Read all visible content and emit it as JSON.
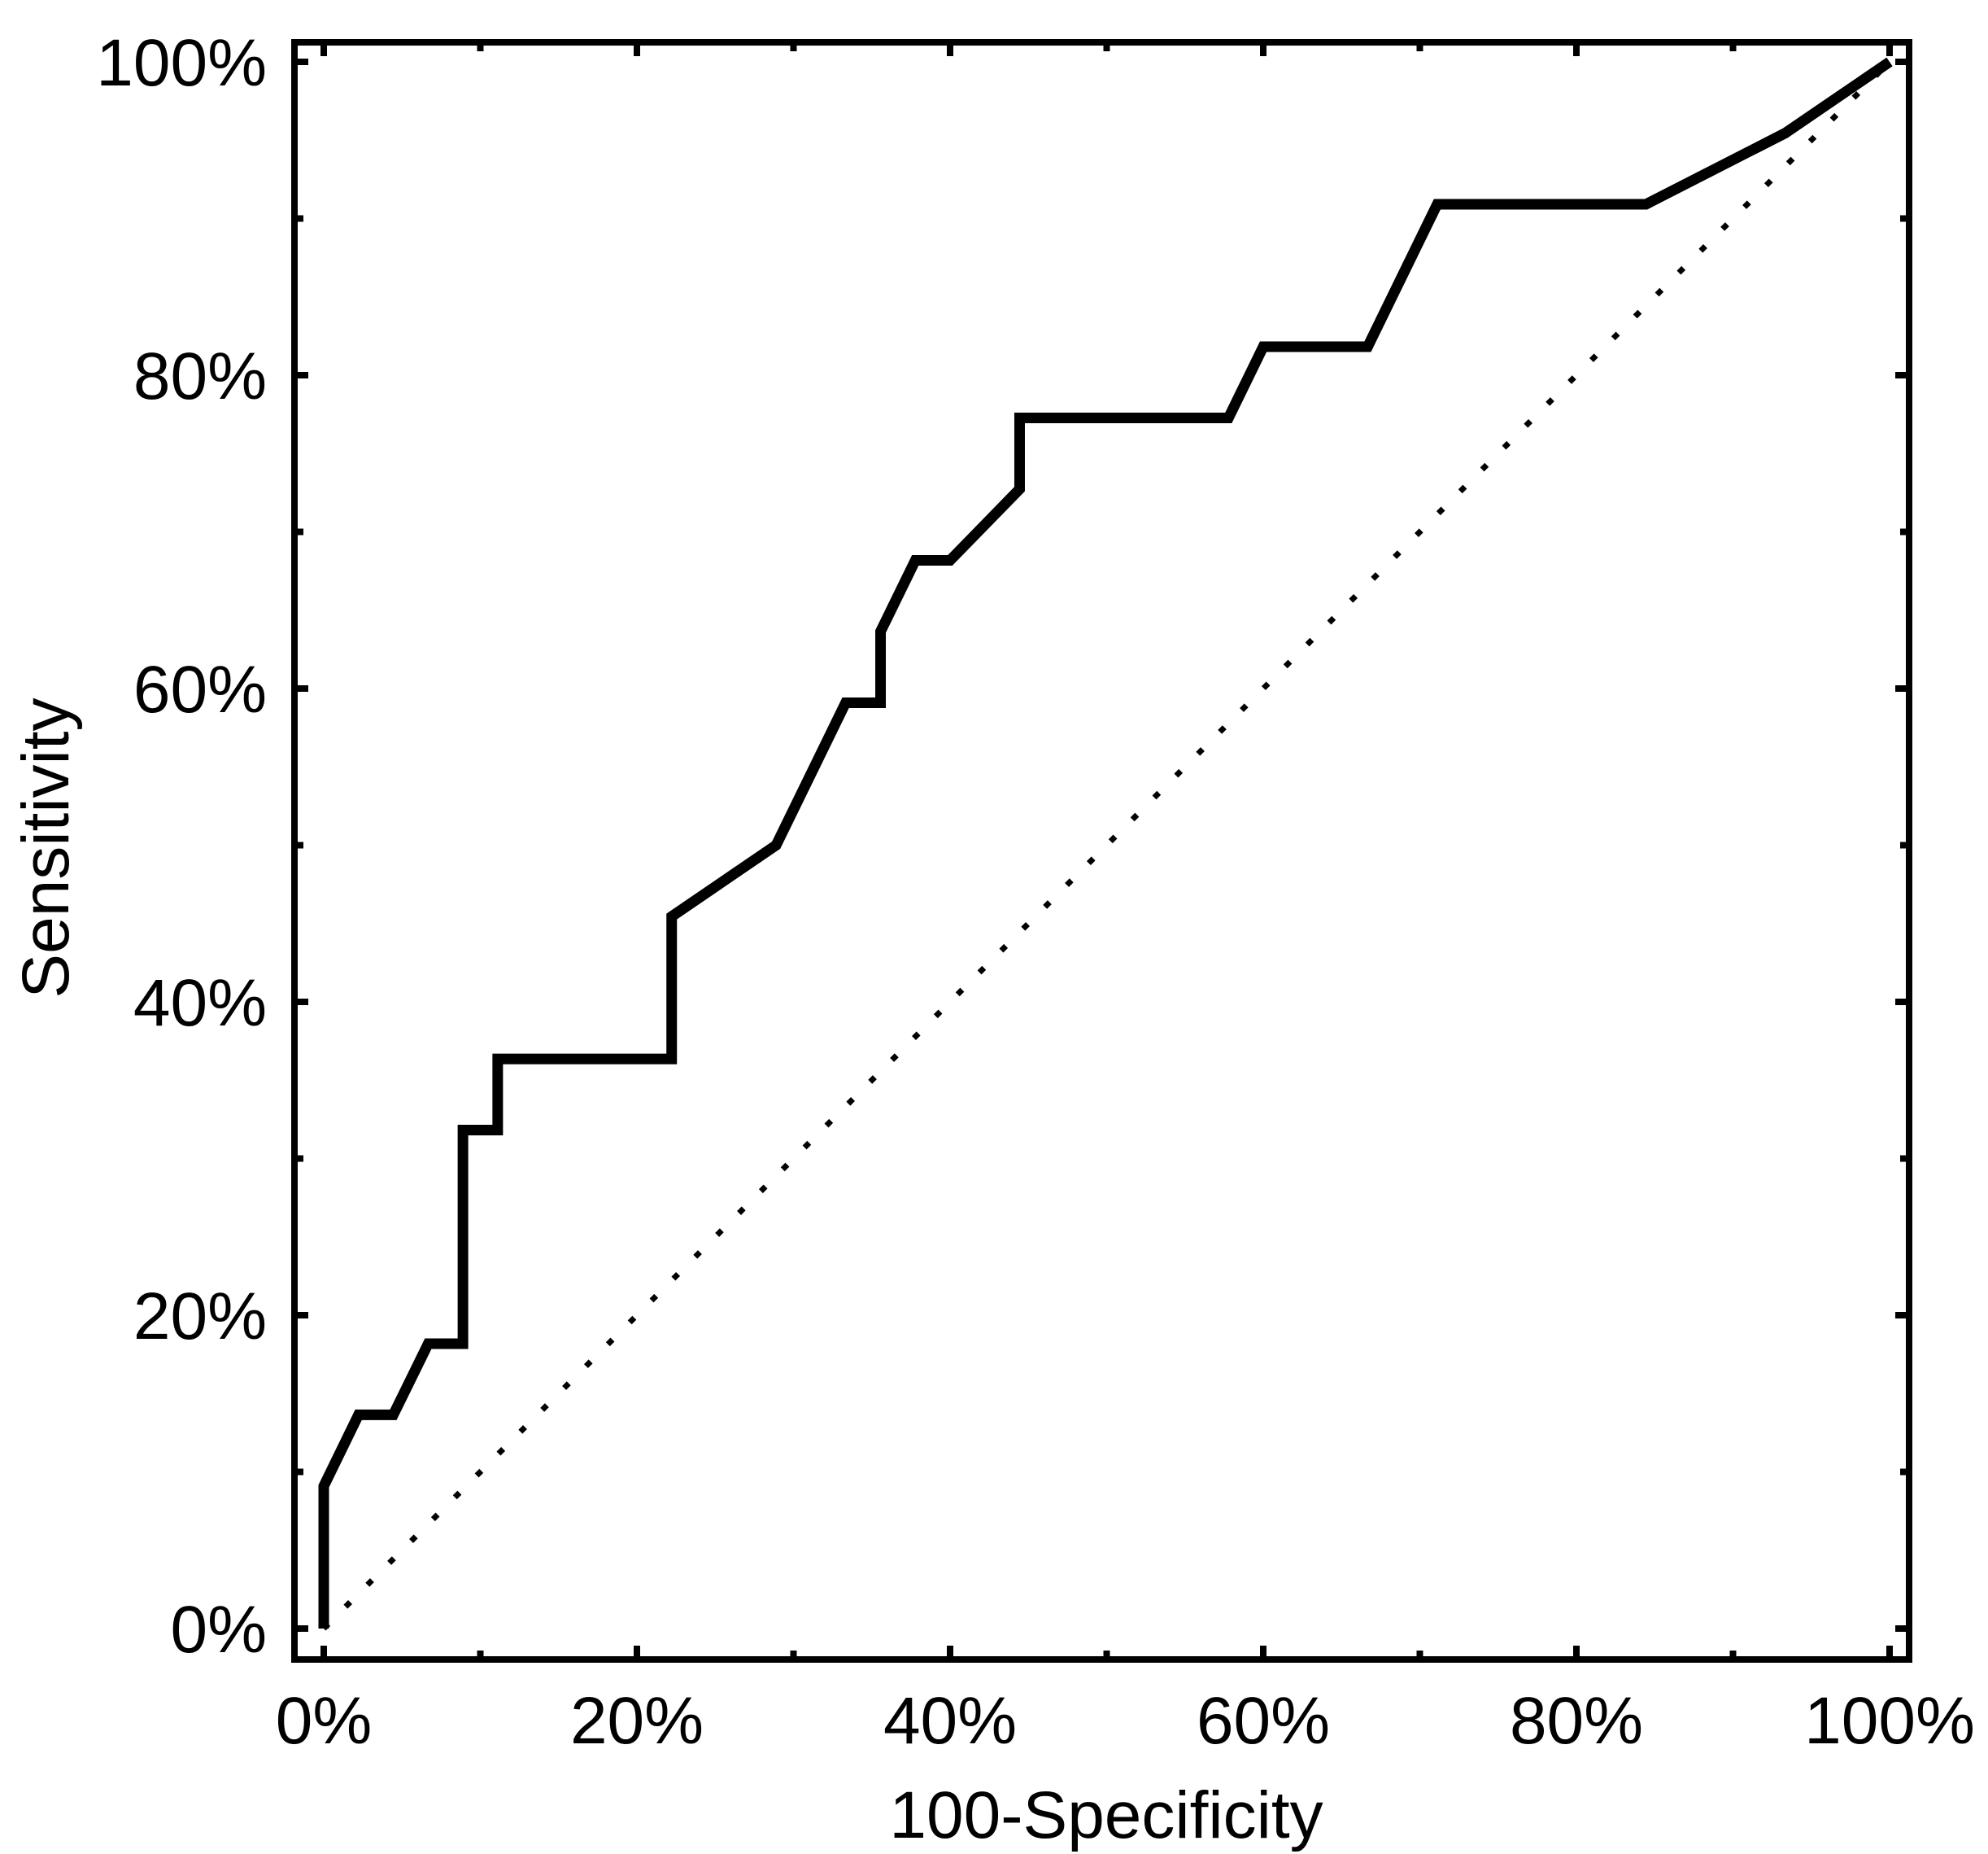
{
  "page": {
    "background": "#ffffff",
    "foreground": "#000000"
  },
  "chart_data": {
    "type": "line",
    "subtype": "roc-curve",
    "title": "",
    "xlabel": "100-Specificity",
    "ylabel": "Sensitivity",
    "xlim": [
      0,
      100
    ],
    "ylim": [
      0,
      100
    ],
    "grid": false,
    "legend": "none",
    "frame_box": true,
    "tick_sides": [
      "bottom",
      "left",
      "top",
      "right"
    ],
    "x_ticks_major": [
      0,
      20,
      40,
      60,
      80,
      100
    ],
    "x_tick_labels": [
      "0%",
      "20%",
      "40%",
      "60%",
      "80%",
      "100%"
    ],
    "x_ticks_minor": [
      10,
      30,
      50,
      70,
      90
    ],
    "y_ticks_major": [
      0,
      20,
      40,
      60,
      80,
      100
    ],
    "y_tick_labels": [
      "0%",
      "20%",
      "40%",
      "60%",
      "80%",
      "100%"
    ],
    "y_ticks_minor": [
      10,
      30,
      50,
      70,
      90
    ],
    "series": [
      {
        "name": "ROC curve",
        "line_style": "solid",
        "color": "#000000",
        "points": [
          [
            0,
            0
          ],
          [
            0,
            9.09
          ],
          [
            2.22,
            13.64
          ],
          [
            4.44,
            13.64
          ],
          [
            6.67,
            18.18
          ],
          [
            8.89,
            18.18
          ],
          [
            8.89,
            31.82
          ],
          [
            11.11,
            31.82
          ],
          [
            11.11,
            36.36
          ],
          [
            22.22,
            36.36
          ],
          [
            22.22,
            45.45
          ],
          [
            28.89,
            50.0
          ],
          [
            33.33,
            59.09
          ],
          [
            35.56,
            59.09
          ],
          [
            35.56,
            63.64
          ],
          [
            37.78,
            68.18
          ],
          [
            40.0,
            68.18
          ],
          [
            44.44,
            72.73
          ],
          [
            44.44,
            77.27
          ],
          [
            57.78,
            77.27
          ],
          [
            60.0,
            81.82
          ],
          [
            66.67,
            81.82
          ],
          [
            71.11,
            90.91
          ],
          [
            84.44,
            90.91
          ],
          [
            93.33,
            95.45
          ],
          [
            100,
            100
          ]
        ]
      },
      {
        "name": "Reference diagonal",
        "line_style": "dotted",
        "color": "#000000",
        "points": [
          [
            0,
            0
          ],
          [
            100,
            100
          ]
        ]
      }
    ]
  }
}
